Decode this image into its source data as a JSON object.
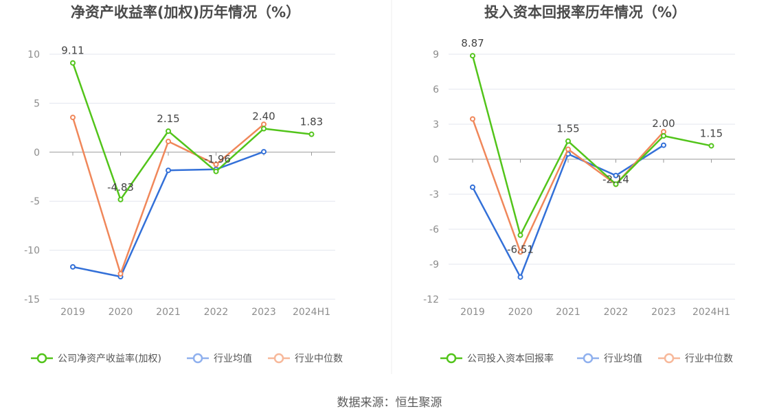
{
  "source": "数据来源：恒生聚源",
  "colors": {
    "company": "#52c41a",
    "industry_avg": "#3370d8",
    "industry_median": "#f0875a",
    "grid": "#e3e6ee",
    "axis": "#999999"
  },
  "legend_line_colors": {
    "company": "#52c41a",
    "industry_avg": "#8fb0ee",
    "industry_median": "#f7b89a"
  },
  "chart_data": [
    {
      "type": "line",
      "title": "净资产收益率(加权)历年情况（%）",
      "categories": [
        "2019",
        "2020",
        "2021",
        "2022",
        "2023",
        "2024H1"
      ],
      "yticks": [
        10,
        5,
        0,
        -5,
        -10,
        -15
      ],
      "ylim": [
        -15,
        10
      ],
      "series": [
        {
          "key": "company",
          "name": "公司净资产收益率(加权)",
          "values": [
            9.11,
            -4.83,
            2.15,
            -1.96,
            2.4,
            1.83
          ],
          "labels": [
            "9.11",
            "-4.83",
            "2.15",
            "-1.96",
            "2.40",
            "1.83"
          ]
        },
        {
          "key": "industry_avg",
          "name": "行业均值",
          "values": [
            -11.7,
            -12.7,
            -1.85,
            -1.75,
            0.05,
            null
          ]
        },
        {
          "key": "industry_median",
          "name": "行业中位数",
          "values": [
            3.55,
            -12.4,
            1.1,
            -1.25,
            2.85,
            null
          ]
        }
      ]
    },
    {
      "type": "line",
      "title": "投入资本回报率历年情况（%）",
      "categories": [
        "2019",
        "2020",
        "2021",
        "2022",
        "2023",
        "2024H1"
      ],
      "yticks": [
        9,
        6,
        3,
        0,
        -3,
        -6,
        -9,
        -12
      ],
      "ylim": [
        -12,
        9
      ],
      "series": [
        {
          "key": "company",
          "name": "公司投入资本回报率",
          "values": [
            8.87,
            -6.51,
            1.55,
            -2.14,
            2.0,
            1.15
          ],
          "labels": [
            "8.87",
            "-6.51",
            "1.55",
            "-2.14",
            "2.00",
            "1.15"
          ]
        },
        {
          "key": "industry_avg",
          "name": "行业均值",
          "values": [
            -2.4,
            -10.1,
            0.45,
            -1.4,
            1.2,
            null
          ]
        },
        {
          "key": "industry_median",
          "name": "行业中位数",
          "values": [
            3.45,
            -7.95,
            0.85,
            -2.15,
            2.35,
            null
          ]
        }
      ]
    }
  ]
}
